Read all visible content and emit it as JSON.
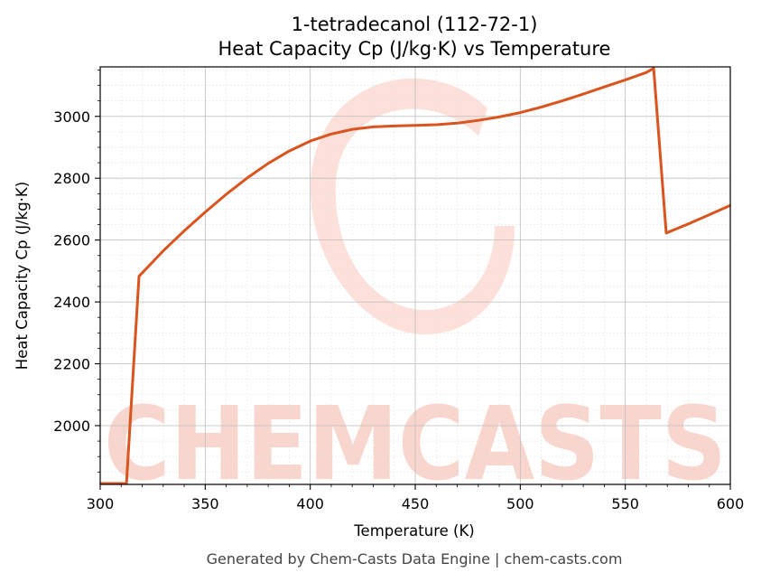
{
  "chart_data": {
    "type": "line",
    "title": "1-tetradecanol (112-72-1)",
    "subtitle": "Heat Capacity Cp (J/kg·K) vs Temperature",
    "xlabel": "Temperature (K)",
    "ylabel": "Heat Capacity Cp (J/kg·K)",
    "xlim": [
      300,
      600
    ],
    "ylim": [
      1810,
      3160
    ],
    "xticks": [
      300,
      350,
      400,
      450,
      500,
      550,
      600
    ],
    "yticks": [
      2000,
      2200,
      2400,
      2600,
      2800,
      3000
    ],
    "grid": true,
    "line_color": "#d9541e",
    "series": [
      {
        "x": [
          300,
          312.5,
          318.5,
          330,
          340,
          350,
          360,
          370,
          380,
          390,
          400,
          410,
          420,
          430,
          440,
          450,
          460,
          470,
          480,
          490,
          500,
          510,
          520,
          530,
          540,
          550,
          560,
          563.5,
          569.5,
          580,
          590,
          600
        ],
        "y": [
          1810,
          1812,
          2483,
          2565,
          2630,
          2690,
          2748,
          2801,
          2848,
          2888,
          2920,
          2943,
          2958,
          2966,
          2969,
          2971,
          2973,
          2978,
          2987,
          2998,
          3012,
          3030,
          3050,
          3072,
          3095,
          3118,
          3142,
          3155,
          2623,
          2652,
          2682,
          2712
        ]
      }
    ]
  },
  "watermark": {
    "text": "CHEMCASTS",
    "color": "#f7c9bd"
  },
  "footer": "Generated by Chem-Casts Data Engine | chem-casts.com"
}
